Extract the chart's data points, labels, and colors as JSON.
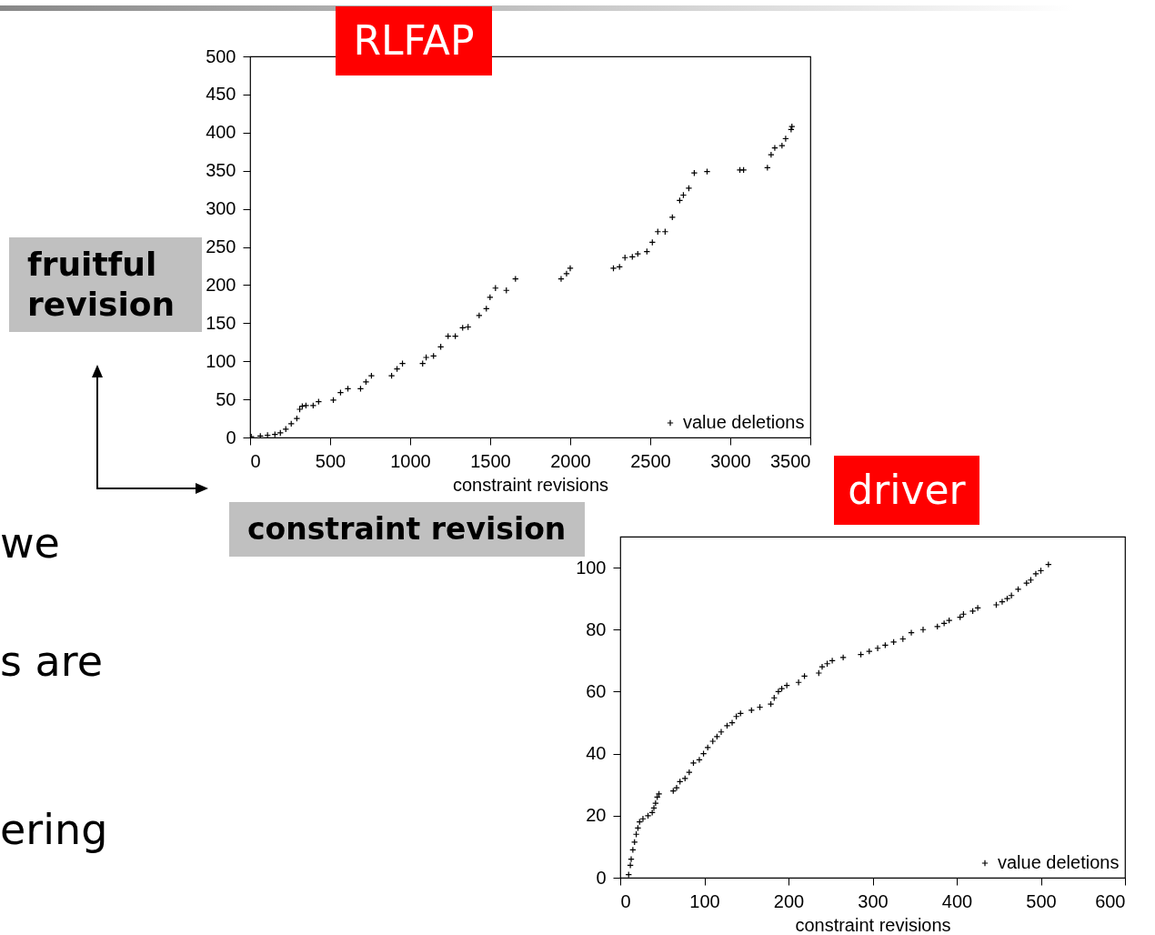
{
  "chart_data": [
    {
      "type": "scatter",
      "title": "RLFAP",
      "xlabel": "constraint revisions",
      "annotations": [
        "fruitful revision",
        "constraint revision",
        "we",
        "s are",
        "ering"
      ],
      "xlim": [
        0,
        3500
      ],
      "xticks": [
        0,
        500,
        1000,
        1500,
        2000,
        2500,
        3000,
        3500
      ],
      "ylim": [
        0,
        500
      ],
      "yticks": [
        0,
        50,
        100,
        150,
        200,
        250,
        300,
        350,
        400,
        450,
        500
      ],
      "grid": false,
      "legend": "bottom right",
      "marker": "cross",
      "series": [
        {
          "name": "value deletions",
          "color": "#000000",
          "x": [
            7,
            64,
            109,
            155,
            189,
            223,
            257,
            292,
            310,
            326,
            349,
            394,
            428,
            520,
            565,
            611,
            690,
            724,
            758,
            884,
            918,
            952,
            1078,
            1100,
            1146,
            1191,
            1237,
            1282,
            1328,
            1362,
            1431,
            1476,
            1499,
            1533,
            1601,
            1658,
            1943,
            1977,
            2000,
            2270,
            2308,
            2342,
            2388,
            2422,
            2479,
            2513,
            2547,
            2593,
            2638,
            2684,
            2707,
            2741,
            2775,
            2855,
            3060,
            3083,
            3232,
            3255,
            3278,
            3323,
            3346,
            3380,
            3385
          ],
          "values": [
            1,
            2,
            3,
            4,
            6,
            11,
            18,
            25,
            37,
            41,
            42,
            42,
            47,
            49,
            59,
            64,
            64,
            73,
            81,
            81,
            90,
            97,
            97,
            105,
            107,
            119,
            133,
            133,
            144,
            145,
            160,
            169,
            184,
            196,
            193,
            208,
            208,
            215,
            222,
            222,
            224,
            236,
            237,
            241,
            244,
            256,
            270,
            270,
            289,
            311,
            318,
            327,
            347,
            349,
            351,
            351,
            354,
            371,
            380,
            383,
            392,
            404,
            408
          ]
        }
      ]
    },
    {
      "type": "scatter",
      "title": "driver",
      "xlabel": "constraint revisions",
      "xlim": [
        0,
        600
      ],
      "xticks": [
        0,
        100,
        200,
        300,
        400,
        500,
        600
      ],
      "ylim": [
        0,
        110
      ],
      "yticks": [
        0,
        20,
        40,
        60,
        80,
        100
      ],
      "grid": false,
      "legend": "bottom right",
      "marker": "cross",
      "series": [
        {
          "name": "value deletions",
          "color": "#000000",
          "x": [
            10,
            12,
            13,
            15,
            17,
            19,
            21,
            23,
            27,
            33,
            38,
            40,
            42,
            44,
            46,
            63,
            67,
            71,
            77,
            82,
            87,
            94,
            99,
            104,
            110,
            115,
            120,
            127,
            133,
            138,
            143,
            156,
            166,
            179,
            183,
            188,
            192,
            198,
            212,
            219,
            236,
            240,
            246,
            252,
            265,
            286,
            296,
            306,
            315,
            325,
            336,
            346,
            360,
            377,
            385,
            391,
            404,
            408,
            419,
            425,
            447,
            454,
            460,
            465,
            473,
            483,
            488,
            494,
            500,
            509
          ],
          "values": [
            1,
            4,
            6,
            9,
            11.5,
            14,
            16,
            18,
            19,
            20,
            21,
            22.5,
            24,
            26,
            27,
            28,
            29,
            31,
            32,
            34,
            37,
            38,
            40,
            42,
            44,
            45.5,
            47,
            49,
            50,
            52,
            53,
            54,
            55,
            56,
            58,
            60,
            61,
            62,
            63,
            65,
            66,
            68,
            69,
            70,
            71,
            72,
            73,
            74,
            75,
            76,
            77,
            79,
            80,
            81,
            82,
            83,
            84,
            85,
            86,
            87,
            88,
            89,
            90,
            91,
            93,
            95,
            96,
            98,
            99,
            101
          ]
        }
      ]
    }
  ]
}
